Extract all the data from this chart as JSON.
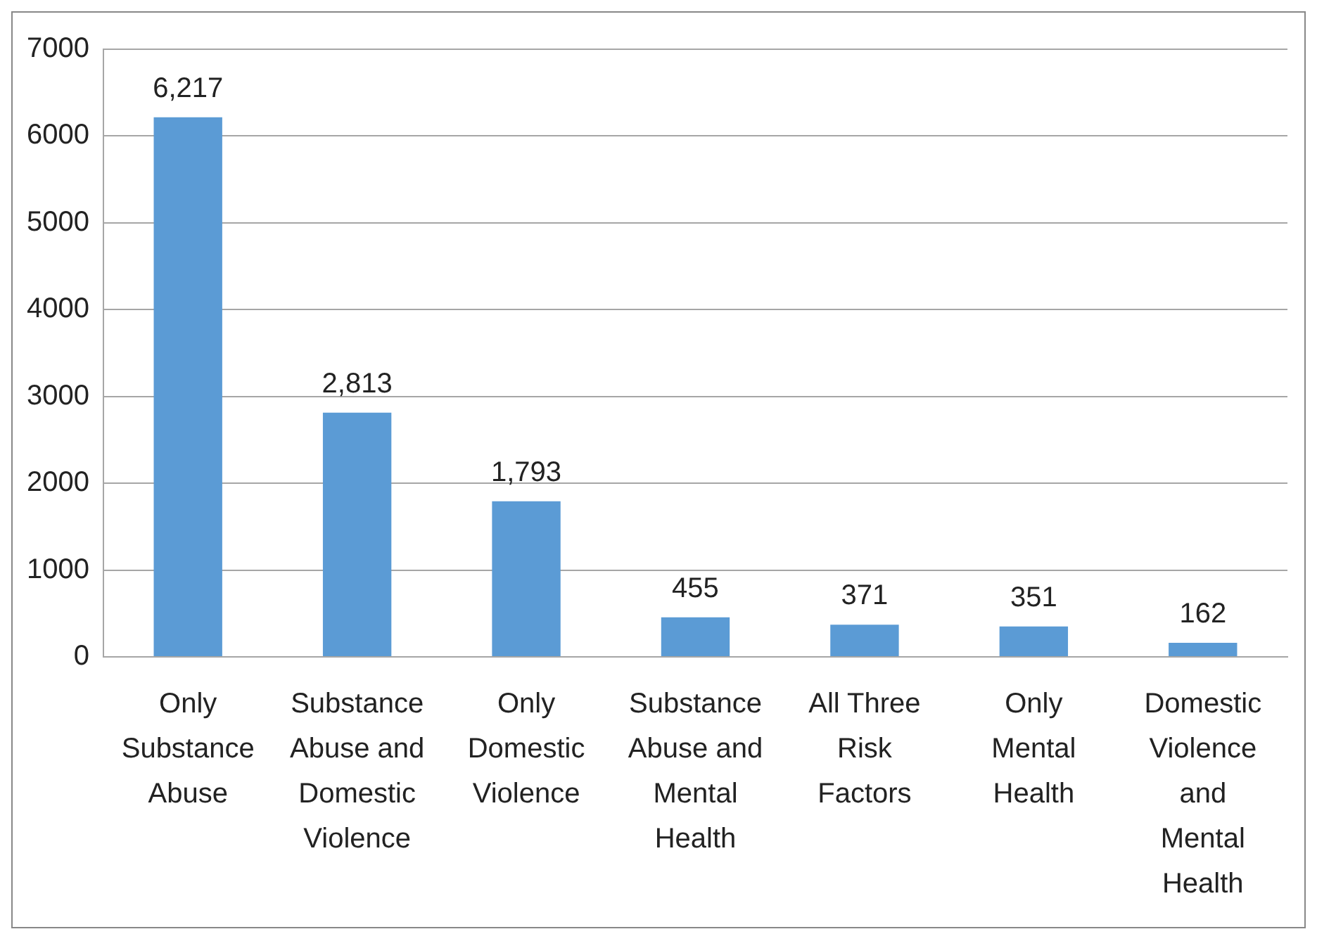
{
  "chart_data": {
    "type": "bar",
    "categories": [
      "Only Substance Abuse",
      "Substance Abuse and Domestic Violence",
      "Only Domestic Violence",
      "Substance Abuse and Mental Health",
      "All Three Risk Factors",
      "Only Mental Health",
      "Domestic Violence and Mental Health"
    ],
    "values": [
      6217,
      2813,
      1793,
      455,
      371,
      351,
      162
    ],
    "value_labels": [
      "6,217",
      "2,813",
      "1,793",
      "455",
      "371",
      "351",
      "162"
    ],
    "color": "#5b9bd5",
    "ylim": [
      0,
      7000
    ],
    "yticks": [
      0,
      1000,
      2000,
      3000,
      4000,
      5000,
      6000,
      7000
    ],
    "grid": "y",
    "legend": false
  }
}
